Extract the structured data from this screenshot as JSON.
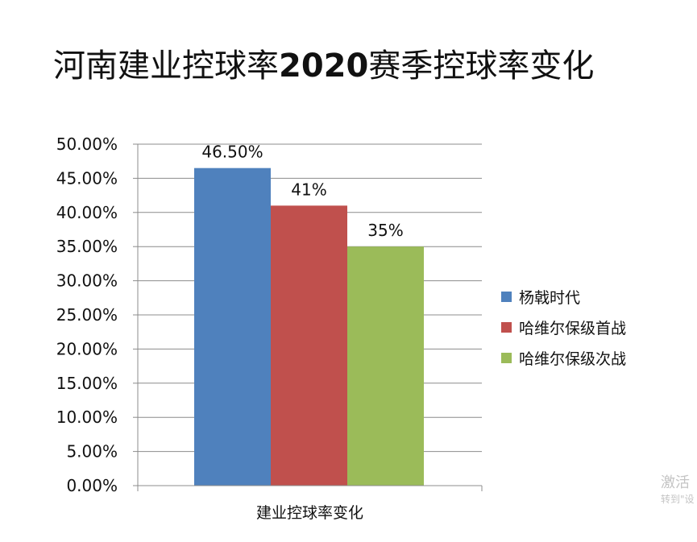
{
  "title_prefix": "河南建业控球率",
  "title_bold": "2020",
  "title_suffix": "赛季控球率变化",
  "watermark": {
    "line1": "激活",
    "line2": "转到\"设"
  },
  "chart_data": {
    "type": "bar",
    "categories": [
      "建业控球率变化"
    ],
    "series": [
      {
        "name": "杨戟时代",
        "values": [
          46.5
        ],
        "label": "46.50%",
        "color": "#4f81bd"
      },
      {
        "name": "哈维尔保级首战",
        "values": [
          41
        ],
        "label": "41%",
        "color": "#c0504d"
      },
      {
        "name": "哈维尔保级次战",
        "values": [
          35
        ],
        "label": "35%",
        "color": "#9bbb59"
      }
    ],
    "ylim": [
      0,
      50
    ],
    "yticks": [
      0,
      5,
      10,
      15,
      20,
      25,
      30,
      35,
      40,
      45,
      50
    ],
    "ytick_labels": [
      "0.00%",
      "5.00%",
      "10.00%",
      "15.00%",
      "20.00%",
      "25.00%",
      "30.00%",
      "35.00%",
      "40.00%",
      "45.00%",
      "50.00%"
    ],
    "grid": true,
    "legend_position": "right",
    "xlabel": "",
    "ylabel": ""
  }
}
